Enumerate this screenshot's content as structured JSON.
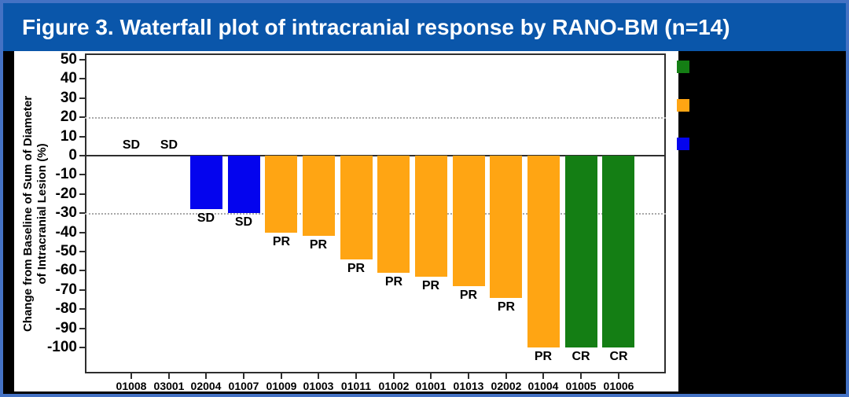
{
  "title": "Figure 3. Waterfall plot of intracranial response by RANO-BM (n=14)",
  "colors": {
    "outer_border": "#4472C4",
    "title_bar": "#0A56AA",
    "title_text": "#FFFFFF",
    "background": "#000000",
    "panel": "#FFFFFF",
    "axis": "#2e2e2e",
    "gridline": "#a8a8a8",
    "response_colors": {
      "SD": "#0404EE",
      "PR": "#FFA513",
      "CR": "#147E14"
    }
  },
  "chart_data": {
    "type": "bar",
    "title": "Figure 3. Waterfall plot of intracranial response by RANO-BM (n=14)",
    "ylabel_line1": "Change from Baseline of Sum of Diameter",
    "ylabel_line2": "of Intracranial Lesion (%)",
    "xlabel": "",
    "ylim": [
      -100,
      50
    ],
    "ytick_interval": 10,
    "dotted_gridlines_at": [
      20,
      -30
    ],
    "grid": "dotted horizontal at +20 and -30 only",
    "legend_position": "right, on black background, swatches only (no visible text)",
    "categories": [
      "01008",
      "03001",
      "02004",
      "01007",
      "01009",
      "01003",
      "01011",
      "01002",
      "01001",
      "01013",
      "02002",
      "01004",
      "01005",
      "01006"
    ],
    "values": [
      0,
      0,
      -28,
      -30,
      -40,
      -42,
      -54,
      -61,
      -63,
      -68,
      -74,
      -100,
      -100,
      -100
    ],
    "responses": [
      "SD",
      "SD",
      "SD",
      "SD",
      "PR",
      "PR",
      "PR",
      "PR",
      "PR",
      "PR",
      "PR",
      "PR",
      "CR",
      "CR"
    ]
  },
  "legend": {
    "swatches": [
      {
        "name": "cr-swatch",
        "color": "#147E14"
      },
      {
        "name": "pr-swatch",
        "color": "#FFA513"
      },
      {
        "name": "sd-swatch",
        "color": "#0404EE"
      }
    ]
  }
}
